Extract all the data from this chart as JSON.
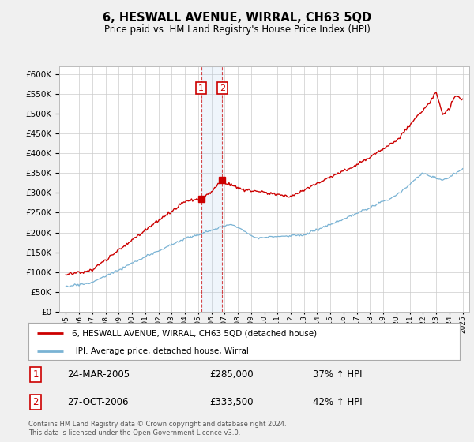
{
  "title": "6, HESWALL AVENUE, WIRRAL, CH63 5QD",
  "subtitle": "Price paid vs. HM Land Registry's House Price Index (HPI)",
  "ylim": [
    0,
    620000
  ],
  "yticks": [
    0,
    50000,
    100000,
    150000,
    200000,
    250000,
    300000,
    350000,
    400000,
    450000,
    500000,
    550000,
    600000
  ],
  "hpi_color": "#7ab3d4",
  "price_color": "#cc0000",
  "background_color": "#f0f0f0",
  "plot_bg_color": "#ffffff",
  "grid_color": "#cccccc",
  "transaction1_x": 2005.23,
  "transaction1_price": 285000,
  "transaction1_date": "24-MAR-2005",
  "transaction1_pct": "37%",
  "transaction2_x": 2006.83,
  "transaction2_price": 333500,
  "transaction2_date": "27-OCT-2006",
  "transaction2_pct": "42%",
  "legend_label_price": "6, HESWALL AVENUE, WIRRAL, CH63 5QD (detached house)",
  "legend_label_hpi": "HPI: Average price, detached house, Wirral",
  "footnote": "Contains HM Land Registry data © Crown copyright and database right 2024.\nThis data is licensed under the Open Government Licence v3.0.",
  "xlim_left": 1994.5,
  "xlim_right": 2025.5
}
